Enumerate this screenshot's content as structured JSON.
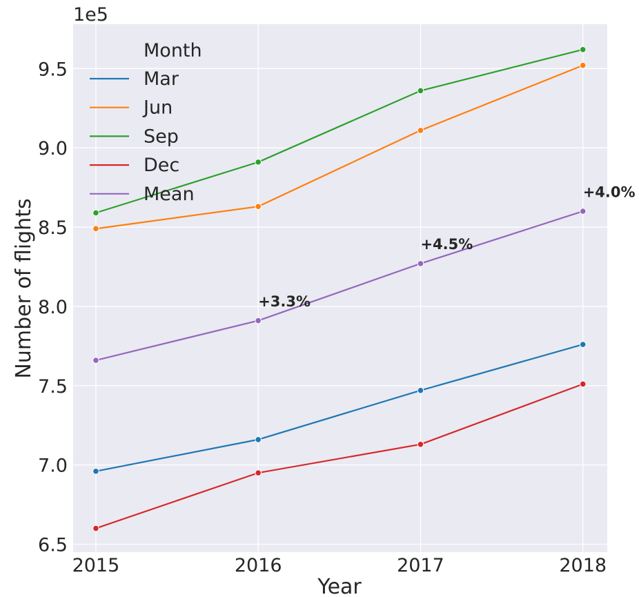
{
  "chart_data": {
    "type": "line",
    "x": [
      2015,
      2016,
      2017,
      2018
    ],
    "xlabel": "Year",
    "ylabel": "Number of flights",
    "scale_label": "1e5",
    "ylim": [
      6.45,
      9.78
    ],
    "yticks": [
      "6.5",
      "7.0",
      "7.5",
      "8.0",
      "8.5",
      "9.0",
      "9.5"
    ],
    "xticks": [
      "2015",
      "2016",
      "2017",
      "2018"
    ],
    "grid": true,
    "legend": {
      "title": "Month",
      "placement": "top-left"
    },
    "series": [
      {
        "name": "Mar",
        "color": "#1f77b4",
        "values": [
          6.96,
          7.16,
          7.47,
          7.76
        ]
      },
      {
        "name": "Jun",
        "color": "#ff7f0e",
        "values": [
          8.49,
          8.63,
          9.11,
          9.52
        ]
      },
      {
        "name": "Sep",
        "color": "#2ca02c",
        "values": [
          8.59,
          8.91,
          9.36,
          9.62
        ]
      },
      {
        "name": "Dec",
        "color": "#d62728",
        "values": [
          6.6,
          6.95,
          7.13,
          7.51
        ]
      },
      {
        "name": "Mean",
        "color": "#9467bd",
        "values": [
          7.66,
          7.91,
          8.27,
          8.6
        ]
      }
    ],
    "annotations": [
      {
        "text": "+3.3%",
        "x": 2016,
        "y": 8.0
      },
      {
        "text": "+4.5%",
        "x": 2017,
        "y": 8.36
      },
      {
        "text": "+4.0%",
        "x": 2018,
        "y": 8.69
      }
    ]
  }
}
